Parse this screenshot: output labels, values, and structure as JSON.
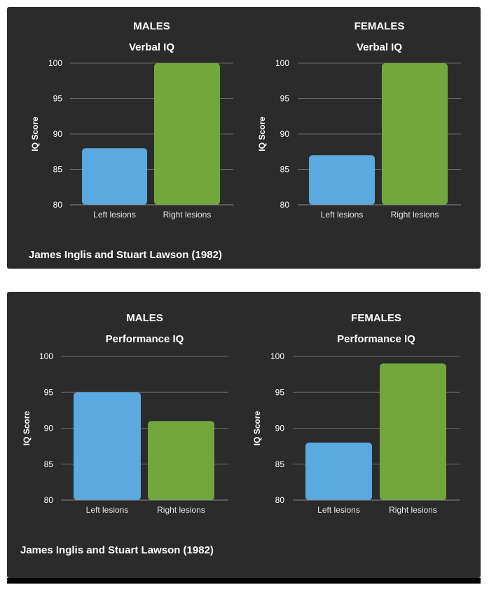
{
  "colors": {
    "background": "#2b2b2b",
    "left_bar": "#5aa9e0",
    "right_bar": "#72a83b",
    "grid": "#6a6a6a"
  },
  "panels": [
    {
      "citation": "James Inglis and Stuart Lawson (1982)"
    },
    {
      "citation": "James Inglis and Stuart Lawson (1982)"
    }
  ],
  "chart_data": [
    {
      "type": "bar",
      "title": "MALES",
      "subtitle": "Verbal IQ",
      "ylabel": "IQ Score",
      "categories": [
        "Left lesions",
        "Right lesions"
      ],
      "values": [
        88,
        100
      ],
      "ylim": [
        80,
        100
      ],
      "yticks": [
        80,
        85,
        90,
        95,
        100
      ],
      "grid": true
    },
    {
      "type": "bar",
      "title": "FEMALES",
      "subtitle": "Verbal IQ",
      "ylabel": "IQ Score",
      "categories": [
        "Left lesions",
        "Right lesions"
      ],
      "values": [
        87,
        100
      ],
      "ylim": [
        80,
        100
      ],
      "yticks": [
        80,
        85,
        90,
        95,
        100
      ],
      "grid": true
    },
    {
      "type": "bar",
      "title": "MALES",
      "subtitle": "Performance IQ",
      "ylabel": "IQ Score",
      "categories": [
        "Left lesions",
        "Right lesions"
      ],
      "values": [
        95,
        91
      ],
      "ylim": [
        80,
        100
      ],
      "yticks": [
        80,
        85,
        90,
        95,
        100
      ],
      "grid": true
    },
    {
      "type": "bar",
      "title": "FEMALES",
      "subtitle": "Performance IQ",
      "ylabel": "IQ Score",
      "categories": [
        "Left lesions",
        "Right lesions"
      ],
      "values": [
        88,
        99
      ],
      "ylim": [
        80,
        100
      ],
      "yticks": [
        80,
        85,
        90,
        95,
        100
      ],
      "grid": true
    }
  ]
}
